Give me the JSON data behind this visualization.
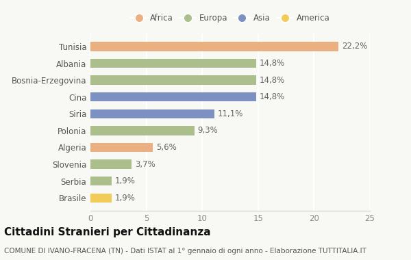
{
  "categories": [
    "Tunisia",
    "Albania",
    "Bosnia-Erzegovina",
    "Cina",
    "Siria",
    "Polonia",
    "Algeria",
    "Slovenia",
    "Serbia",
    "Brasile"
  ],
  "values": [
    22.2,
    14.8,
    14.8,
    14.8,
    11.1,
    9.3,
    5.6,
    3.7,
    1.9,
    1.9
  ],
  "labels": [
    "22,2%",
    "14,8%",
    "14,8%",
    "14,8%",
    "11,1%",
    "9,3%",
    "5,6%",
    "3,7%",
    "1,9%",
    "1,9%"
  ],
  "colors": [
    "#EBB082",
    "#ABBE8C",
    "#ABBE8C",
    "#7D90C2",
    "#7D90C2",
    "#ABBE8C",
    "#EBB082",
    "#ABBE8C",
    "#ABBE8C",
    "#F2CC5A"
  ],
  "legend_labels": [
    "Africa",
    "Europa",
    "Asia",
    "America"
  ],
  "legend_colors": [
    "#EBB082",
    "#ABBE8C",
    "#7D90C2",
    "#F2CC5A"
  ],
  "title": "Cittadini Stranieri per Cittadinanza",
  "subtitle": "COMUNE DI IVANO-FRACENA (TN) - Dati ISTAT al 1° gennaio di ogni anno - Elaborazione TUTTITALIA.IT",
  "xlim": [
    0,
    25
  ],
  "xticks": [
    0,
    5,
    10,
    15,
    20,
    25
  ],
  "background_color": "#f8f8f5",
  "grid_color": "#ffffff",
  "title_fontsize": 11,
  "subtitle_fontsize": 7.5,
  "label_fontsize": 8.5,
  "tick_fontsize": 8.5,
  "bar_height": 0.55
}
